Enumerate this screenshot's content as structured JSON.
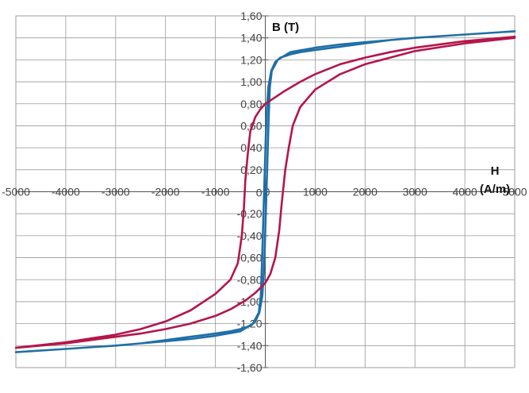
{
  "chart_data": {
    "type": "line",
    "xlabel_line1": "H",
    "xlabel_line2": "(A/m)",
    "ylabel": "B (T)",
    "xlim": [
      -5000,
      5000
    ],
    "ylim": [
      -1.6,
      1.6
    ],
    "grid": true,
    "x_ticks": [
      {
        "value": -5000,
        "label": "-5000"
      },
      {
        "value": -4000,
        "label": "-4000"
      },
      {
        "value": -3000,
        "label": "-3000"
      },
      {
        "value": -2000,
        "label": "-2000"
      },
      {
        "value": -1000,
        "label": "-1000"
      },
      {
        "value": 0,
        "label": "0"
      },
      {
        "value": 1000,
        "label": "1000"
      },
      {
        "value": 2000,
        "label": "2000"
      },
      {
        "value": 3000,
        "label": "3000"
      },
      {
        "value": 4000,
        "label": "4000"
      },
      {
        "value": 5000,
        "label": "5000"
      }
    ],
    "y_ticks": [
      {
        "value": 1.6,
        "label": "1,60"
      },
      {
        "value": 1.4,
        "label": "1,40"
      },
      {
        "value": 1.2,
        "label": "1,20"
      },
      {
        "value": 1.0,
        "label": "1,00"
      },
      {
        "value": 0.8,
        "label": "0,80"
      },
      {
        "value": 0.6,
        "label": "0,60"
      },
      {
        "value": 0.4,
        "label": "0,40"
      },
      {
        "value": 0.2,
        "label": "0,20"
      },
      {
        "value": 0,
        "label": "0"
      },
      {
        "value": -0.2,
        "label": "-0,20"
      },
      {
        "value": -0.4,
        "label": "-0,40"
      },
      {
        "value": -0.6,
        "label": "-0,60"
      },
      {
        "value": -0.8,
        "label": "-0,80"
      },
      {
        "value": -1.0,
        "label": "-1,00"
      },
      {
        "value": -1.2,
        "label": "-1,20"
      },
      {
        "value": -1.4,
        "label": "-1,40"
      },
      {
        "value": -1.6,
        "label": "-1,60"
      }
    ],
    "series": [
      {
        "color": "#1f6fa8",
        "points": [
          [
            5000,
            1.46
          ],
          [
            4000,
            1.43
          ],
          [
            3000,
            1.4
          ],
          [
            2500,
            1.38
          ],
          [
            2000,
            1.35
          ],
          [
            1500,
            1.32
          ],
          [
            1000,
            1.29
          ],
          [
            700,
            1.27
          ],
          [
            500,
            1.25
          ],
          [
            300,
            1.22
          ],
          [
            200,
            1.18
          ],
          [
            120,
            1.1
          ],
          [
            60,
            0.95
          ],
          [
            30,
            0.75
          ],
          [
            10,
            0.5
          ],
          [
            -10,
            0.2
          ],
          [
            -30,
            -0.1
          ],
          [
            -50,
            -0.4
          ],
          [
            -70,
            -0.7
          ],
          [
            -90,
            -0.95
          ],
          [
            -130,
            -1.1
          ],
          [
            -250,
            -1.2
          ],
          [
            -500,
            -1.27
          ],
          [
            -1000,
            -1.31
          ],
          [
            -1500,
            -1.34
          ],
          [
            -2000,
            -1.36
          ],
          [
            -2500,
            -1.38
          ],
          [
            -3000,
            -1.4
          ],
          [
            -4000,
            -1.43
          ],
          [
            -5000,
            -1.46
          ],
          [
            -4000,
            -1.43
          ],
          [
            -3000,
            -1.4
          ],
          [
            -2500,
            -1.38
          ],
          [
            -2000,
            -1.35
          ],
          [
            -1500,
            -1.32
          ],
          [
            -1000,
            -1.29
          ],
          [
            -700,
            -1.27
          ],
          [
            -500,
            -1.25
          ],
          [
            -300,
            -1.22
          ],
          [
            -200,
            -1.18
          ],
          [
            -120,
            -1.1
          ],
          [
            -60,
            -0.95
          ],
          [
            -30,
            -0.75
          ],
          [
            -10,
            -0.5
          ],
          [
            10,
            -0.2
          ],
          [
            30,
            0.1
          ],
          [
            50,
            0.4
          ],
          [
            70,
            0.7
          ],
          [
            90,
            0.95
          ],
          [
            130,
            1.1
          ],
          [
            250,
            1.2
          ],
          [
            500,
            1.27
          ],
          [
            1000,
            1.31
          ],
          [
            1500,
            1.34
          ],
          [
            2000,
            1.36
          ],
          [
            2500,
            1.38
          ],
          [
            3000,
            1.4
          ],
          [
            4000,
            1.43
          ],
          [
            5000,
            1.46
          ]
        ]
      },
      {
        "color": "#b5154b",
        "points": [
          [
            5000,
            1.41
          ],
          [
            4000,
            1.37
          ],
          [
            3000,
            1.31
          ],
          [
            2500,
            1.27
          ],
          [
            2000,
            1.22
          ],
          [
            1500,
            1.16
          ],
          [
            1000,
            1.07
          ],
          [
            700,
            1.0
          ],
          [
            400,
            0.92
          ],
          [
            200,
            0.86
          ],
          [
            0,
            0.8
          ],
          [
            -100,
            0.75
          ],
          [
            -200,
            0.68
          ],
          [
            -300,
            0.55
          ],
          [
            -350,
            0.35
          ],
          [
            -400,
            0.1
          ],
          [
            -430,
            -0.15
          ],
          [
            -470,
            -0.4
          ],
          [
            -550,
            -0.65
          ],
          [
            -700,
            -0.8
          ],
          [
            -1000,
            -0.93
          ],
          [
            -1500,
            -1.08
          ],
          [
            -2000,
            -1.18
          ],
          [
            -2500,
            -1.25
          ],
          [
            -3000,
            -1.3
          ],
          [
            -4000,
            -1.37
          ],
          [
            -5000,
            -1.42
          ],
          [
            -4000,
            -1.38
          ],
          [
            -3000,
            -1.32
          ],
          [
            -2500,
            -1.29
          ],
          [
            -2000,
            -1.25
          ],
          [
            -1500,
            -1.2
          ],
          [
            -1000,
            -1.13
          ],
          [
            -700,
            -1.07
          ],
          [
            -400,
            -0.99
          ],
          [
            -200,
            -0.92
          ],
          [
            0,
            -0.83
          ],
          [
            100,
            -0.75
          ],
          [
            200,
            -0.6
          ],
          [
            280,
            -0.35
          ],
          [
            330,
            -0.1
          ],
          [
            400,
            0.2
          ],
          [
            470,
            0.4
          ],
          [
            550,
            0.6
          ],
          [
            700,
            0.77
          ],
          [
            1000,
            0.93
          ],
          [
            1500,
            1.07
          ],
          [
            2000,
            1.16
          ],
          [
            2500,
            1.22
          ],
          [
            3000,
            1.28
          ],
          [
            4000,
            1.35
          ],
          [
            5000,
            1.4
          ]
        ]
      }
    ]
  }
}
